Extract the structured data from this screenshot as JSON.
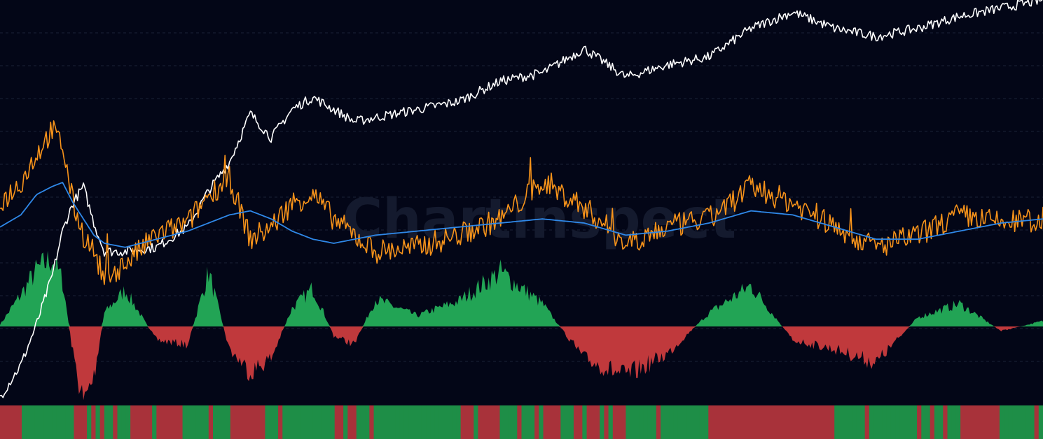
{
  "watermark": {
    "text": "Chartinspect"
  },
  "colors": {
    "background": "#030617",
    "gridline": "#1b2337",
    "price_line": "#ffffff",
    "ratio_line": "#f7931a",
    "moving_average": "#2f88e8",
    "positive_histogram": "#22a455",
    "negative_histogram": "#c0393c",
    "regime_positive": "#1e8e47",
    "regime_negative": "#a8323a",
    "watermark": "#141a2e"
  },
  "chart_data": {
    "type": "line",
    "title": "",
    "xlabel": "",
    "ylabel": "",
    "grid": true,
    "x": [
      0,
      0.02,
      0.035,
      0.05,
      0.06,
      0.07,
      0.08,
      0.09,
      0.1,
      0.12,
      0.15,
      0.18,
      0.2,
      0.22,
      0.24,
      0.26,
      0.28,
      0.3,
      0.32,
      0.34,
      0.36,
      0.4,
      0.44,
      0.48,
      0.52,
      0.56,
      0.6,
      0.64,
      0.68,
      0.72,
      0.76,
      0.8,
      0.84,
      0.88,
      0.92,
      0.96,
      1.0
    ],
    "series": [
      {
        "key": "price",
        "values": [
          0.02,
          0.1,
          0.2,
          0.32,
          0.43,
          0.5,
          0.54,
          0.45,
          0.38,
          0.38,
          0.39,
          0.44,
          0.53,
          0.6,
          0.72,
          0.66,
          0.73,
          0.76,
          0.73,
          0.7,
          0.71,
          0.73,
          0.75,
          0.8,
          0.82,
          0.88,
          0.81,
          0.84,
          0.86,
          0.93,
          0.97,
          0.93,
          0.91,
          0.93,
          0.96,
          0.98,
          1.0
        ]
      },
      {
        "key": "ratio",
        "values": [
          0.5,
          0.55,
          0.62,
          0.68,
          0.64,
          0.5,
          0.42,
          0.38,
          0.31,
          0.35,
          0.42,
          0.45,
          0.52,
          0.56,
          0.41,
          0.44,
          0.5,
          0.52,
          0.46,
          0.42,
          0.38,
          0.39,
          0.42,
          0.46,
          0.55,
          0.49,
          0.4,
          0.44,
          0.46,
          0.54,
          0.5,
          0.44,
          0.39,
          0.42,
          0.47,
          0.45,
          0.46
        ]
      },
      {
        "key": "moving_average",
        "values": [
          0.44,
          0.47,
          0.52,
          0.54,
          0.55,
          0.5,
          0.46,
          0.42,
          0.4,
          0.39,
          0.41,
          0.43,
          0.45,
          0.47,
          0.48,
          0.46,
          0.43,
          0.41,
          0.4,
          0.41,
          0.42,
          0.43,
          0.44,
          0.45,
          0.46,
          0.45,
          0.42,
          0.43,
          0.45,
          0.48,
          0.47,
          0.44,
          0.41,
          0.41,
          0.43,
          0.45,
          0.46
        ]
      }
    ],
    "histogram": {
      "zero_fraction": 0.745,
      "values": [
        0.02,
        0.35,
        0.62,
        0.75,
        0.5,
        -0.3,
        -0.85,
        -0.55,
        0.15,
        0.4,
        -0.15,
        -0.2,
        0.6,
        -0.25,
        -0.5,
        -0.35,
        0.2,
        0.42,
        -0.1,
        -0.2,
        0.3,
        0.12,
        0.28,
        0.6,
        0.25,
        -0.35,
        -0.55,
        -0.3,
        0.15,
        0.45,
        -0.15,
        -0.25,
        -0.4,
        0.1,
        0.25,
        -0.05,
        0.06
      ]
    },
    "regime": [
      "negative",
      "positive",
      "positive",
      "positive",
      "positive",
      "negative",
      "negative",
      "positive",
      "positive",
      "negative",
      "negative",
      "positive",
      "positive",
      "negative",
      "negative",
      "positive",
      "positive",
      "positive",
      "negative",
      "positive",
      "positive",
      "positive",
      "negative",
      "positive",
      "negative",
      "negative",
      "positive",
      "positive",
      "negative",
      "negative",
      "negative",
      "positive",
      "positive",
      "positive",
      "negative",
      "positive",
      "positive"
    ]
  }
}
